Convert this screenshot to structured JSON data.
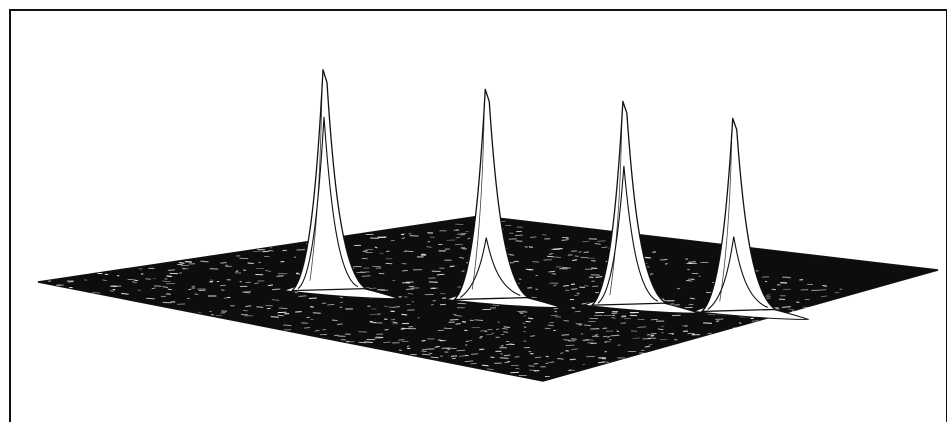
{
  "chart_data": {
    "type": "surface-3d",
    "title": "",
    "xlabel": "",
    "ylabel": "",
    "zlabel": "",
    "grid": false,
    "legend": "none",
    "peaks": [
      {
        "x": 0.26,
        "y": 0.35,
        "height": 1.0,
        "secondary_height": 0.78
      },
      {
        "x": 0.45,
        "y": 0.5,
        "height": 0.95,
        "secondary_height": 0.26
      },
      {
        "x": 0.6,
        "y": 0.64,
        "height": 0.92,
        "secondary_height": 0.62
      },
      {
        "x": 0.73,
        "y": 0.74,
        "height": 0.87,
        "secondary_height": 0.32
      }
    ],
    "colors": {
      "surface": "#0d0d0d",
      "noise": "#ffffff",
      "peak_fill": "#ffffff",
      "outline": "#111111"
    }
  }
}
